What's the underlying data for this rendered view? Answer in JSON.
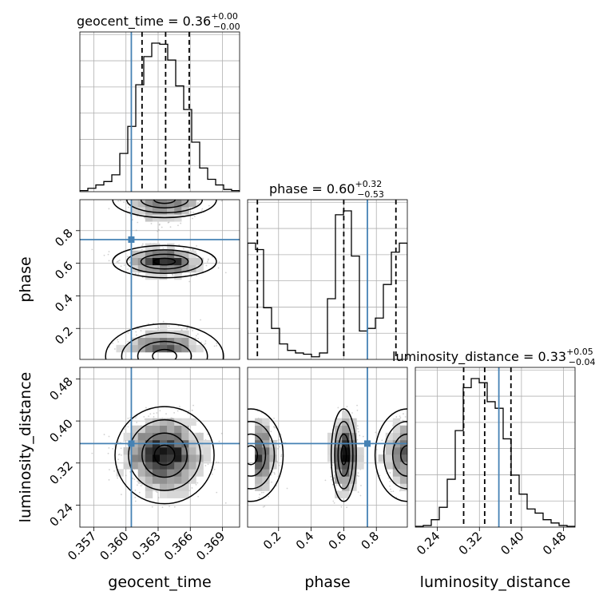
{
  "chart_data": {
    "type": "corner",
    "parameters": [
      "geocent_time",
      "phase",
      "luminosity_distance"
    ],
    "truths": {
      "geocent_time": 0.3605,
      "phase": 0.745,
      "luminosity_distance": 0.357
    },
    "titles": [
      {
        "main": "geocent_time = 0.36",
        "sup": "+0.00",
        "sub": "−0.00"
      },
      {
        "main": "phase = 0.60",
        "sup": "+0.32",
        "sub": "−0.53"
      },
      {
        "main": "luminosity_distance = 0.33",
        "sup": "+0.05",
        "sub": "−0.04"
      }
    ],
    "axis_labels": {
      "geocent_time": "geocent_time",
      "phase": "phase",
      "luminosity_distance": "luminosity_distance"
    },
    "ticks": {
      "geocent_time": [
        "0.357",
        "0.360",
        "0.363",
        "0.366",
        "0.369"
      ],
      "phase": [
        "0.2",
        "0.4",
        "0.6",
        "0.8"
      ],
      "luminosity_distance": [
        "0.24",
        "0.32",
        "0.40",
        "0.48"
      ]
    },
    "tick_values": {
      "geocent_time": [
        0.357,
        0.36,
        0.363,
        0.366,
        0.369
      ],
      "phase": [
        0.2,
        0.4,
        0.6,
        0.8
      ],
      "luminosity_distance": [
        0.24,
        0.32,
        0.4,
        0.48
      ]
    },
    "ranges": {
      "geocent_time": [
        0.3557,
        0.3706
      ],
      "phase": [
        0.01,
        0.99
      ],
      "luminosity_distance": [
        0.198,
        0.502
      ]
    },
    "quantiles": {
      "geocent_time": [
        0.3615,
        0.3637,
        0.3659
      ],
      "phase": [
        0.07,
        0.6,
        0.92
      ],
      "luminosity_distance": [
        0.29,
        0.33,
        0.38
      ]
    },
    "histograms": {
      "geocent_time": {
        "edges_start": 0.3557,
        "bin_width": 0.000745,
        "counts": [
          1,
          3,
          6,
          9,
          15,
          34,
          58,
          95,
          120,
          132,
          131,
          117,
          94,
          73,
          44,
          21,
          11,
          6,
          2,
          1
        ]
      },
      "phase": {
        "edges_start": 0.01,
        "bin_width": 0.049,
        "counts": [
          90,
          85,
          40,
          24,
          12,
          7,
          5,
          4,
          2,
          5,
          47,
          112,
          115,
          80,
          22,
          24,
          32,
          58,
          83,
          90
        ]
      },
      "luminosity_distance": {
        "edges_start": 0.198,
        "bin_width": 0.0152,
        "counts": [
          1,
          2,
          9,
          24,
          58,
          117,
          169,
          180,
          175,
          152,
          144,
          107,
          63,
          40,
          22,
          17,
          9,
          5,
          2,
          1
        ]
      }
    },
    "grid": true,
    "scatter_points": "gray"
  },
  "colors": {
    "truth": "#4682b4",
    "hist": "#000000",
    "grid": "#b0b0b0",
    "points": "#999999"
  }
}
